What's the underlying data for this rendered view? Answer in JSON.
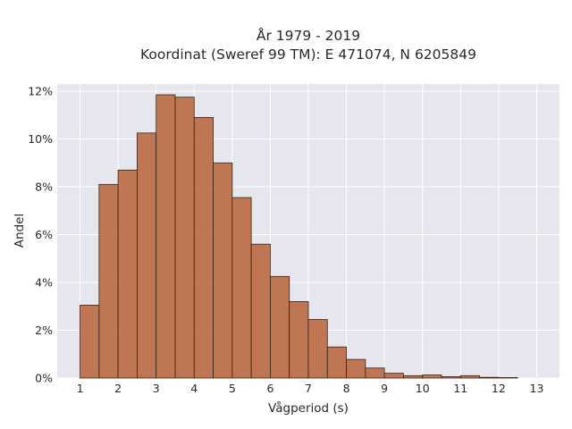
{
  "chart_data": {
    "type": "bar",
    "title": [
      "År 1979 - 2019",
      "Koordinat (Sweref 99 TM): E 471074, N 6205849"
    ],
    "xlabel": "Vågperiod (s)",
    "ylabel": "Andel",
    "xlim": [
      0.4,
      13.6
    ],
    "ylim": [
      0,
      12.3
    ],
    "x_ticks": [
      1,
      2,
      3,
      4,
      5,
      6,
      7,
      8,
      9,
      10,
      11,
      12,
      13
    ],
    "y_ticks": [
      0,
      2,
      4,
      6,
      8,
      10,
      12
    ],
    "y_tick_labels": [
      "0%",
      "2%",
      "4%",
      "6%",
      "8%",
      "10%",
      "12%"
    ],
    "bin_width": 0.5,
    "bins": [
      {
        "x0": 1.0,
        "x1": 1.5,
        "value": 3.05
      },
      {
        "x0": 1.5,
        "x1": 2.0,
        "value": 8.1
      },
      {
        "x0": 2.0,
        "x1": 2.5,
        "value": 8.7
      },
      {
        "x0": 2.5,
        "x1": 3.0,
        "value": 10.25
      },
      {
        "x0": 3.0,
        "x1": 3.5,
        "value": 11.85
      },
      {
        "x0": 3.5,
        "x1": 4.0,
        "value": 11.75
      },
      {
        "x0": 4.0,
        "x1": 4.5,
        "value": 10.9
      },
      {
        "x0": 4.5,
        "x1": 5.0,
        "value": 9.0
      },
      {
        "x0": 5.0,
        "x1": 5.5,
        "value": 7.55
      },
      {
        "x0": 5.5,
        "x1": 6.0,
        "value": 5.6
      },
      {
        "x0": 6.0,
        "x1": 6.5,
        "value": 4.25
      },
      {
        "x0": 6.5,
        "x1": 7.0,
        "value": 3.2
      },
      {
        "x0": 7.0,
        "x1": 7.5,
        "value": 2.45
      },
      {
        "x0": 7.5,
        "x1": 8.0,
        "value": 1.3
      },
      {
        "x0": 8.0,
        "x1": 8.5,
        "value": 0.78
      },
      {
        "x0": 8.5,
        "x1": 9.0,
        "value": 0.42
      },
      {
        "x0": 9.0,
        "x1": 9.5,
        "value": 0.2
      },
      {
        "x0": 9.5,
        "x1": 10.0,
        "value": 0.1
      },
      {
        "x0": 10.0,
        "x1": 10.5,
        "value": 0.13
      },
      {
        "x0": 10.5,
        "x1": 11.0,
        "value": 0.06
      },
      {
        "x0": 11.0,
        "x1": 11.5,
        "value": 0.1
      },
      {
        "x0": 11.5,
        "x1": 12.0,
        "value": 0.03
      },
      {
        "x0": 12.0,
        "x1": 12.5,
        "value": 0.02
      }
    ],
    "grid": true,
    "colors": {
      "bar_fill": "#b8673e",
      "bar_edge": "#3a2418",
      "plot_background": "#e6e6ef",
      "grid": "#ffffff"
    }
  }
}
